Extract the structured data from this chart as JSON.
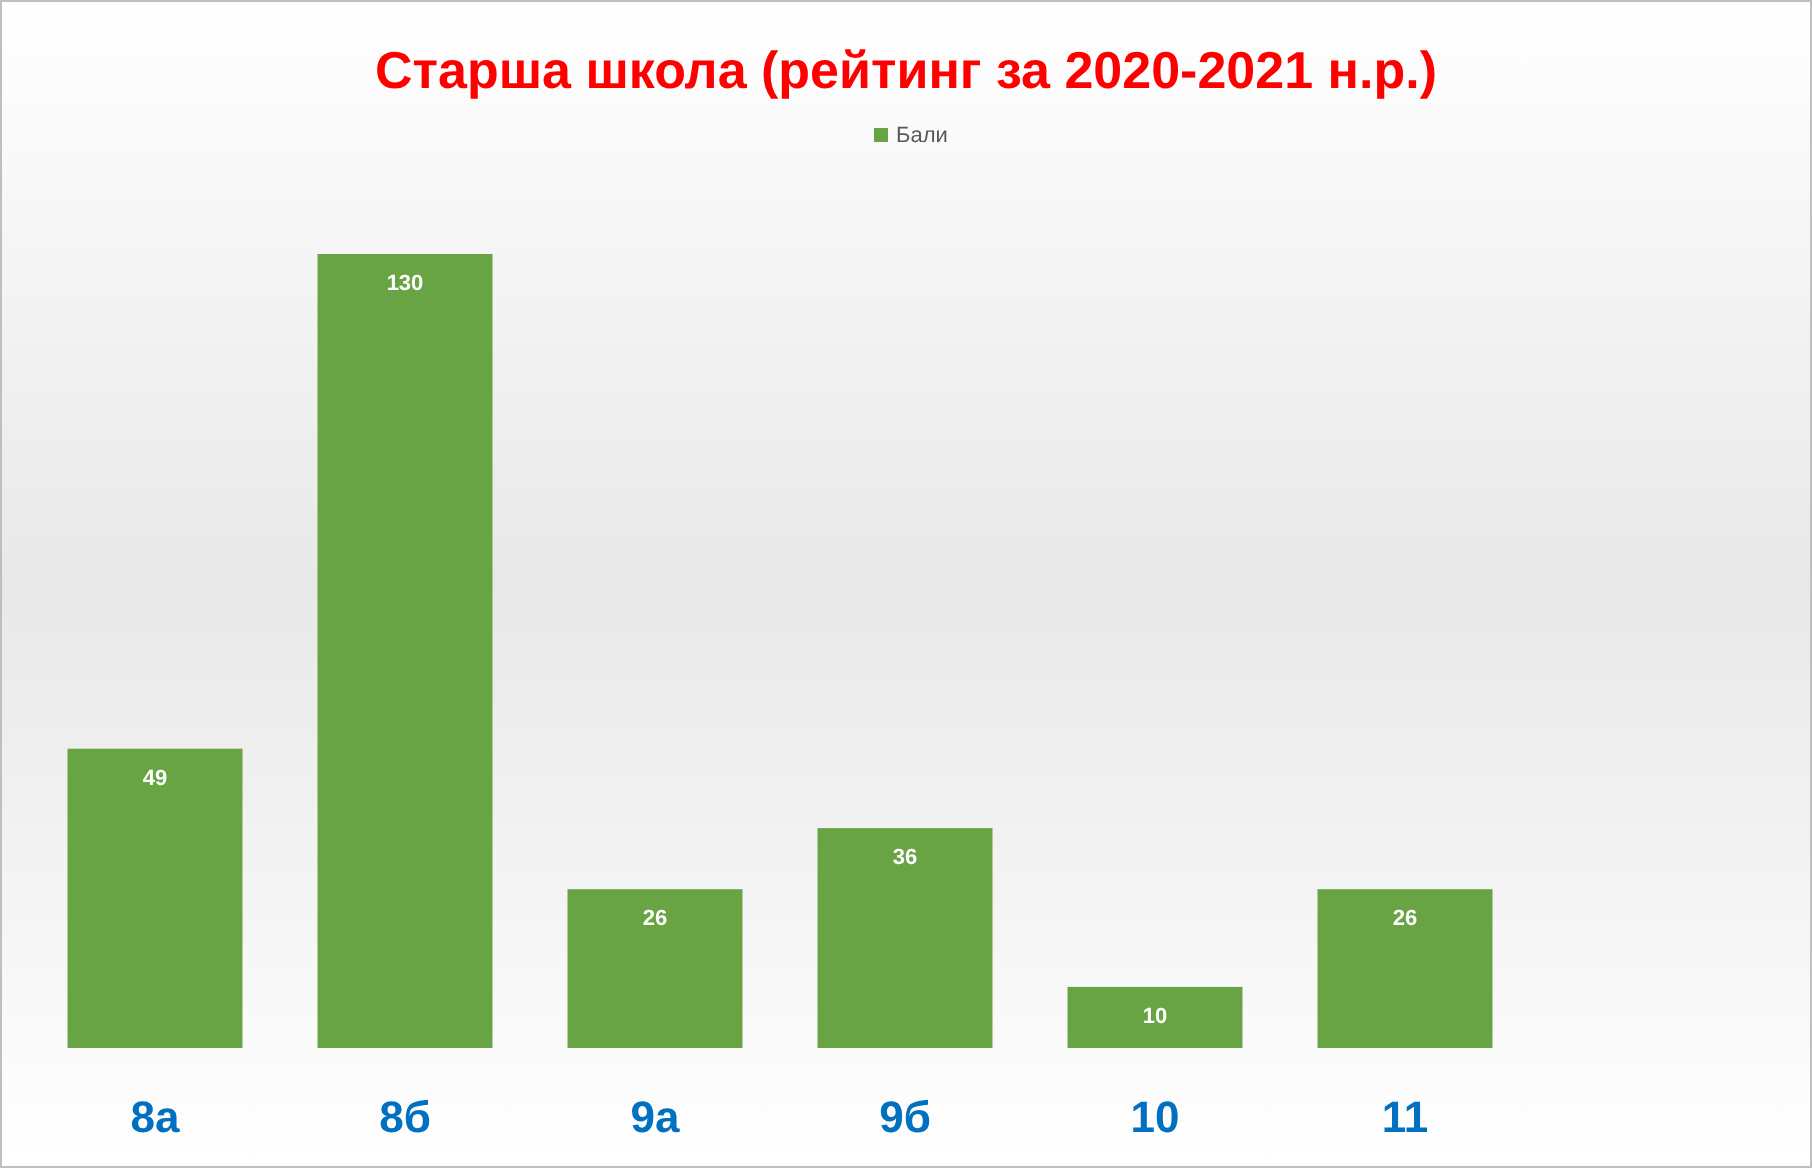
{
  "chart_data": {
    "type": "bar",
    "title": "Старша школа (рейтинг за 2020-2021 н.р.)",
    "categories": [
      "8а",
      "8б",
      "9а",
      "9б",
      "10",
      "11"
    ],
    "series": [
      {
        "name": "Бали",
        "color": "#68a444",
        "values": [
          49,
          130,
          26,
          36,
          10,
          26
        ]
      }
    ],
    "data_labels": true,
    "legend": "top",
    "grid": false
  }
}
